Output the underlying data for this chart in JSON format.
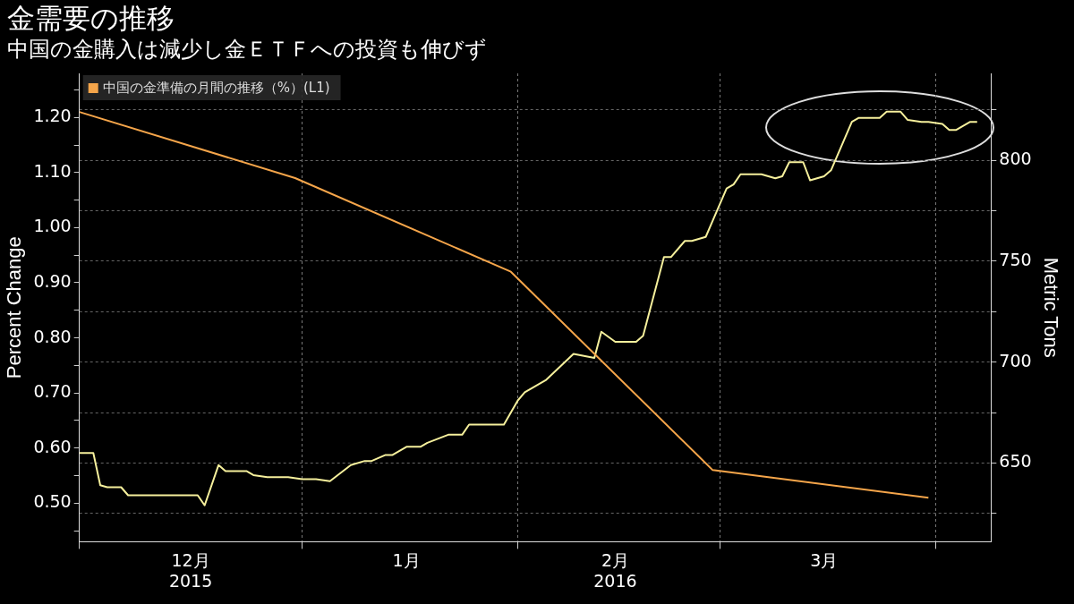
{
  "chart_data": {
    "type": "line",
    "title": "金需要の推移",
    "subtitle": "中国の金購入は減少し金ＥＴＦへの投資も伸びず",
    "ylabel": "Percent Change",
    "y2label": "Metric Tons",
    "xlim": [
      "2015-11-30",
      "2016-04-09"
    ],
    "xticks": [
      {
        "value": "2015-11-30",
        "label": null
      },
      {
        "value": "2015-12-16",
        "label": "12月\n2015"
      },
      {
        "value": "2016-01-01",
        "label": null
      },
      {
        "value": "2016-01-16",
        "label": "1月"
      },
      {
        "value": "2016-02-01",
        "label": null
      },
      {
        "value": "2016-02-15",
        "label": "2月\n2016"
      },
      {
        "value": "2016-03-01",
        "label": null
      },
      {
        "value": "2016-03-16",
        "label": "3月"
      },
      {
        "value": "2016-04-01",
        "label": null
      }
    ],
    "ylim": [
      0.43,
      1.28
    ],
    "yticks": [
      {
        "value": 0.45,
        "label": null
      },
      {
        "value": 0.5,
        "label": "0.50"
      },
      {
        "value": 0.55,
        "label": null
      },
      {
        "value": 0.6,
        "label": "0.60"
      },
      {
        "value": 0.65,
        "label": null
      },
      {
        "value": 0.7,
        "label": "0.70"
      },
      {
        "value": 0.75,
        "label": null
      },
      {
        "value": 0.8,
        "label": "0.80"
      },
      {
        "value": 0.85,
        "label": null
      },
      {
        "value": 0.9,
        "label": "0.90"
      },
      {
        "value": 0.95,
        "label": null
      },
      {
        "value": 1.0,
        "label": "1.00"
      },
      {
        "value": 1.05,
        "label": null
      },
      {
        "value": 1.1,
        "label": "1.10"
      },
      {
        "value": 1.15,
        "label": null
      },
      {
        "value": 1.2,
        "label": "1.20"
      },
      {
        "value": 1.25,
        "label": null
      }
    ],
    "y2lim": [
      611,
      843
    ],
    "y2ticks": [
      {
        "value": 625,
        "label": null
      },
      650,
      {
        "value": 675,
        "label": null
      },
      700,
      {
        "value": 725,
        "label": null
      },
      750,
      {
        "value": 775,
        "label": null
      },
      800,
      {
        "value": 825,
        "label": null
      }
    ],
    "grid": true,
    "legend": "top left",
    "marker": "none",
    "line_style": "solid",
    "series": [
      {
        "name": "中国の金準備の月間の推移（%）(L1)",
        "color": "#f5a54a",
        "x": [
          "2015-11-30",
          "2015-12-31",
          "2016-01-31",
          "2016-02-29",
          "2016-03-31"
        ],
        "values": [
          1.21,
          1.09,
          0.92,
          0.56,
          0.51
        ]
      },
      {
        "color": "#f6f09c",
        "axis": "y2",
        "x": [
          "2015-11-30",
          "2015-12-02",
          "2015-12-03",
          "2015-12-04",
          "2015-12-06",
          "2015-12-07",
          "2015-12-17",
          "2015-12-18",
          "2015-12-20",
          "2015-12-21",
          "2015-12-24",
          "2015-12-25",
          "2015-12-27",
          "2015-12-30",
          "2016-01-01",
          "2016-01-03",
          "2016-01-05",
          "2016-01-08",
          "2016-01-10",
          "2016-01-11",
          "2016-01-13",
          "2016-01-14",
          "2016-01-16",
          "2016-01-18",
          "2016-01-19",
          "2016-01-22",
          "2016-01-24",
          "2016-01-25",
          "2016-01-30",
          "2016-02-01",
          "2016-02-02",
          "2016-02-05",
          "2016-02-09",
          "2016-02-12",
          "2016-02-13",
          "2016-02-15",
          "2016-02-18",
          "2016-02-19",
          "2016-02-22",
          "2016-02-23",
          "2016-02-25",
          "2016-02-26",
          "2016-02-28",
          "2016-03-01",
          "2016-03-02",
          "2016-03-03",
          "2016-03-04",
          "2016-03-07",
          "2016-03-09",
          "2016-03-10",
          "2016-03-11",
          "2016-03-13",
          "2016-03-14",
          "2016-03-16",
          "2016-03-17",
          "2016-03-20",
          "2016-03-21",
          "2016-03-24",
          "2016-03-25",
          "2016-03-27",
          "2016-03-28",
          "2016-03-30",
          "2016-03-31",
          "2016-04-02",
          "2016-04-03",
          "2016-04-04",
          "2016-04-06",
          "2016-04-07"
        ],
        "values": [
          655,
          655,
          639,
          638,
          638,
          634,
          634,
          629,
          649,
          646,
          646,
          644,
          643,
          643,
          642,
          642,
          641,
          649,
          651,
          651,
          654,
          654,
          658,
          658,
          660,
          664,
          664,
          669,
          669,
          681,
          685,
          691,
          704,
          702,
          715,
          710,
          710,
          713,
          752,
          752,
          760,
          760,
          762,
          778,
          786,
          788,
          793,
          793,
          791,
          792,
          799,
          799,
          790,
          792,
          795,
          819,
          821,
          821,
          824,
          824,
          820,
          819,
          819,
          818,
          815,
          815,
          819,
          819
        ]
      }
    ]
  }
}
